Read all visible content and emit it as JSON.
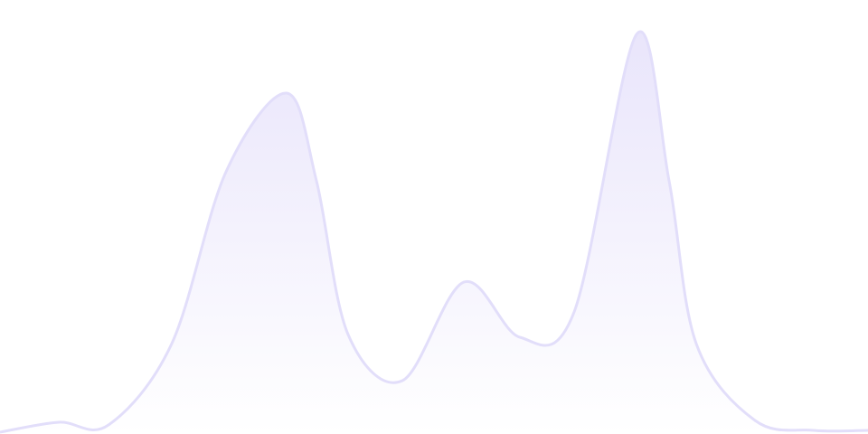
{
  "chart_data": {
    "type": "area",
    "title": "",
    "xlabel": "",
    "ylabel": "",
    "axes_visible": false,
    "grid": false,
    "legend": "none",
    "x": [
      0,
      1,
      2,
      3,
      4,
      5,
      6,
      7,
      8,
      9,
      10,
      11,
      12,
      13,
      14,
      15,
      16,
      17
    ],
    "ylim": [
      0,
      480
    ],
    "series": [
      {
        "values": [
          2,
          13,
          10,
          100,
          290,
          377,
          280,
          110,
          59,
          168,
          107,
          135,
          442,
          280,
          100,
          15,
          4,
          4
        ]
      }
    ],
    "colors": {
      "stroke": "#e2defa",
      "fill_top": "#e9e5fb",
      "fill_bottom": "#ffffff"
    }
  }
}
